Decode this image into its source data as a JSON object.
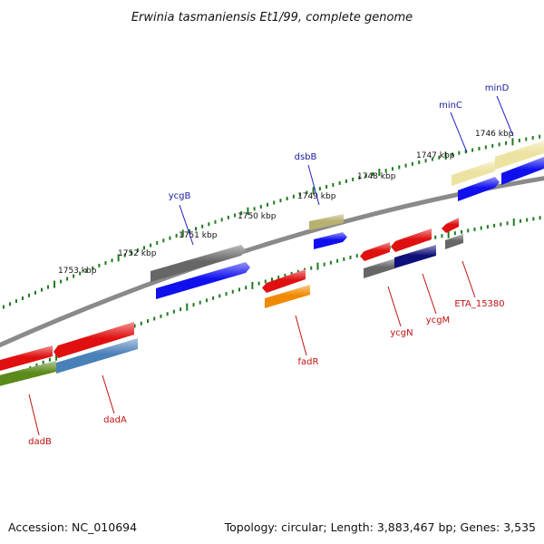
{
  "title": "Erwinia tasmaniensis Et1/99, complete genome",
  "footer": {
    "accession": "Accession: NC_010694",
    "summary": "Topology: circular; Length: 3,883,467 bp; Genes: 3,535"
  },
  "ruler": [
    "1753 kbp",
    "1752 kbp",
    "1751 kbp",
    "1750 kbp",
    "1749 kbp",
    "1748 kbp",
    "1747 kbp",
    "1746 kbp"
  ],
  "genes": {
    "forward": [
      "ycgB",
      "dsbB",
      "minC",
      "minD"
    ],
    "reverse": [
      "dadB",
      "dadA",
      "fadR",
      "ycgN",
      "ycgM",
      "ETA_15380"
    ]
  },
  "colors": {
    "backbone": "#8a8a8a",
    "tick": "#1e7a1e",
    "label_forward": "#1a1aa0",
    "label_reverse": "#c01010",
    "red": "#e01010",
    "blue": "#1010ee",
    "grey": "#666666",
    "olive": "#5a8a1a",
    "steel": "#4a80b8",
    "orange": "#f08a00",
    "navy": "#10107a",
    "khaki": "#b8b070",
    "cream": "#ece3a0"
  }
}
